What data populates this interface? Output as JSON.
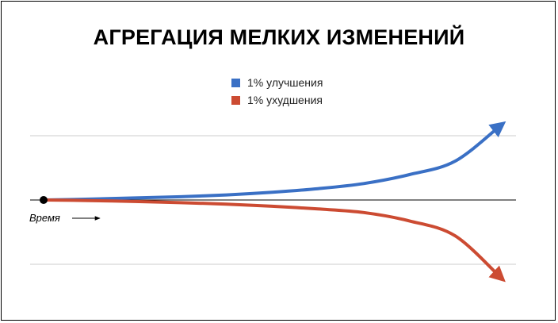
{
  "chart_data": {
    "type": "line",
    "title": "АГРЕГАЦИЯ МЕЛКИХ ИЗМЕНЕНИЙ",
    "xlabel": "Время",
    "ylabel": "",
    "grid": true,
    "legend_position": "top-center",
    "x": [
      0,
      1,
      2,
      3,
      4,
      5,
      6,
      7,
      8,
      9,
      10
    ],
    "series": [
      {
        "name": "1% улучшения",
        "color": "#3a70c5",
        "values": [
          0,
          0.03,
          0.07,
          0.11,
          0.17,
          0.26,
          0.38,
          0.55,
          0.85,
          1.3,
          2.5
        ]
      },
      {
        "name": "1% ухудшения",
        "color": "#cc4b32",
        "values": [
          0,
          -0.02,
          -0.05,
          -0.09,
          -0.14,
          -0.21,
          -0.3,
          -0.42,
          -0.7,
          -1.2,
          -2.6
        ]
      }
    ],
    "start_point": {
      "x": 0,
      "y": 0
    },
    "ylim": [
      -2.6,
      2.6
    ]
  }
}
